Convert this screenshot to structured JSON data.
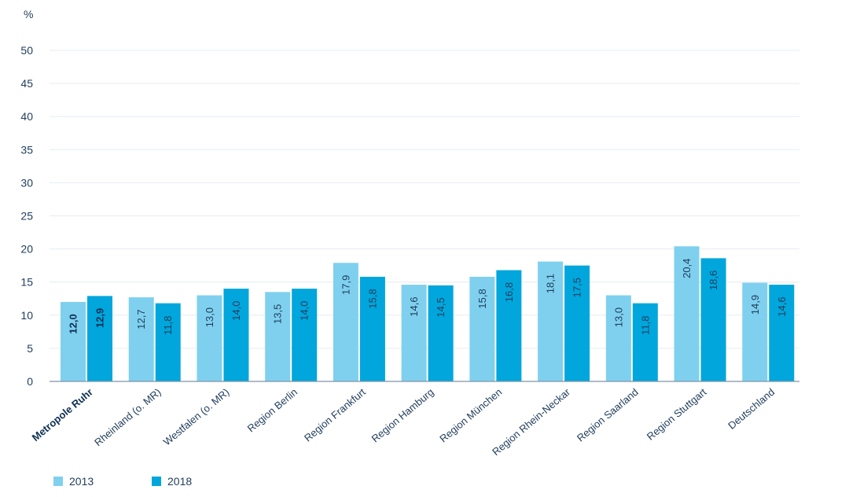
{
  "chart_data": {
    "type": "bar",
    "unit": "%",
    "categories": [
      "Metropole Ruhr",
      "Rheinland (o. MR)",
      "Westfalen (o. MR)",
      "Region Berlin",
      "Region Frankfurt",
      "Region Hamburg",
      "Region München",
      "Region Rhein-Neckar",
      "Region Saarland",
      "Region Stuttgart",
      "Deutschland"
    ],
    "highlight_category": "Metropole Ruhr",
    "series": [
      {
        "name": "2013",
        "color": "#7fd0ee",
        "values": [
          12.0,
          12.7,
          13.0,
          13.5,
          17.9,
          14.6,
          15.8,
          18.1,
          13.0,
          20.4,
          14.9
        ],
        "labels": [
          "12,0",
          "12,7",
          "13,0",
          "13,5",
          "17,9",
          "14,6",
          "15,8",
          "18,1",
          "13,0",
          "20,4",
          "14,9"
        ]
      },
      {
        "name": "2018",
        "color": "#00a6dc",
        "values": [
          12.9,
          11.8,
          14.0,
          14.0,
          15.8,
          14.5,
          16.8,
          17.5,
          11.8,
          18.6,
          14.6
        ],
        "labels": [
          "12,9",
          "11,8",
          "14,0",
          "14,0",
          "15,8",
          "14,5",
          "16,8",
          "17,5",
          "11,8",
          "18,6",
          "14,6"
        ]
      }
    ],
    "ylim": [
      0,
      50
    ],
    "yticks": [
      0,
      5,
      10,
      15,
      20,
      25,
      30,
      35,
      40,
      45,
      50
    ],
    "ytick_labels": [
      "0",
      "5",
      "10",
      "15",
      "20",
      "25",
      "30",
      "35",
      "40",
      "45",
      "50"
    ],
    "grid": true,
    "legend_position": "bottom-left"
  }
}
